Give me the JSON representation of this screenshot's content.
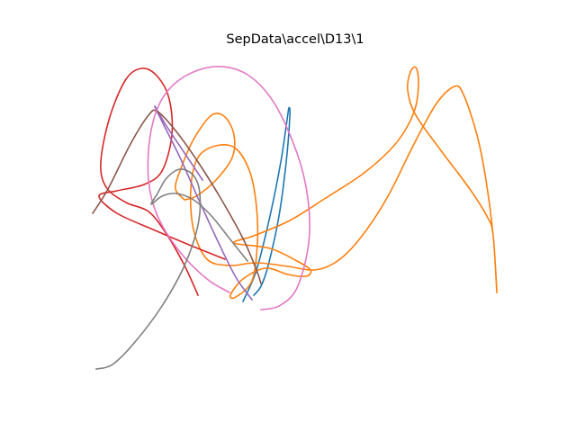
{
  "chart_data": {
    "type": "line",
    "title": "SepData\\accel\\D13\\1",
    "xlim": [
      80,
      576
    ],
    "ylim": [
      427,
      58
    ],
    "series": [
      {
        "color": "#1f77b4",
        "x": [
          270,
          285,
          300,
          312,
          318,
          321,
          322,
          318,
          310,
          298,
          290,
          282
        ],
        "values": [
          335,
          300,
          240,
          180,
          140,
          120,
          130,
          180,
          240,
          295,
          318,
          328
        ]
      },
      {
        "color": "#ff7f0e",
        "x": [
          552,
          548,
          542,
          522,
          492,
          462,
          453,
          456,
          462,
          465,
          462,
          450,
          432,
          402,
          362,
          322,
          282,
          260,
          300,
          330,
          345,
          340,
          320,
          295,
          270,
          256,
          262,
          280,
          286,
          285,
          278,
          262,
          240,
          220,
          212,
          215,
          230,
          255,
          285,
          320,
          350,
          375,
          400,
          430,
          460,
          485,
          505,
          515,
          530,
          540,
          548,
          552
        ],
        "values": [
          325,
          262,
          242,
          210,
          170,
          128,
          100,
          80,
          75,
          90,
          118,
          145,
          168,
          194,
          220,
          245,
          262,
          270,
          276,
          290,
          300,
          307,
          305,
          298,
          310,
          328,
          330,
          312,
          270,
          230,
          192,
          165,
          162,
          175,
          210,
          255,
          288,
          295,
          292,
          296,
          300,
          290,
          265,
          220,
          160,
          115,
          96,
          105,
          150,
          200,
          262,
          322
        ]
      },
      {
        "color": "#ff7f0e",
        "x": [
          205,
          195,
          200,
          215,
          235,
          250,
          260,
          258,
          240,
          218,
          205
        ],
        "values": [
          222,
          210,
          190,
          155,
          128,
          130,
          150,
          175,
          200,
          218,
          222
        ]
      },
      {
        "color": "#d62728",
        "x": [
          250,
          210,
          170,
          130,
          110,
          130,
          160,
          180,
          191,
          188,
          175,
          158,
          140,
          122,
          112,
          118,
          140,
          165,
          185,
          205,
          220
        ],
        "values": [
          288,
          272,
          255,
          237,
          218,
          212,
          205,
          190,
          150,
          110,
          85,
          76,
          88,
          130,
          180,
          208,
          225,
          235,
          260,
          295,
          328
        ]
      },
      {
        "color": "#9467bd",
        "x": [
          225,
          205,
          185,
          172,
          180,
          200,
          220,
          242,
          262,
          280
        ],
        "values": [
          200,
          170,
          140,
          118,
          135,
          175,
          220,
          268,
          308,
          333
        ]
      },
      {
        "color": "#8c564b",
        "x": [
          103,
          120,
          145,
          165,
          175,
          195,
          220,
          245,
          270,
          285,
          290
        ],
        "values": [
          237,
          210,
          160,
          128,
          124,
          145,
          180,
          220,
          265,
          300,
          315
        ]
      },
      {
        "color": "#e377c2",
        "x": [
          290,
          310,
          330,
          343,
          342,
          330,
          305,
          275,
          240,
          205,
          180,
          167,
          165,
          175,
          200,
          230,
          255
        ],
        "values": [
          344,
          340,
          320,
          270,
          220,
          170,
          115,
          83,
          74,
          85,
          110,
          150,
          200,
          240,
          280,
          310,
          325
        ]
      },
      {
        "color": "#7f7f7f",
        "x": [
          107,
          125,
          150,
          180,
          205,
          220,
          222,
          215,
          200,
          185,
          175,
          168,
          180,
          195,
          215,
          235,
          255,
          275
        ],
        "values": [
          410,
          405,
          380,
          340,
          295,
          250,
          215,
          195,
          188,
          198,
          215,
          227,
          218,
          215,
          222,
          240,
          265,
          290
        ]
      }
    ]
  }
}
